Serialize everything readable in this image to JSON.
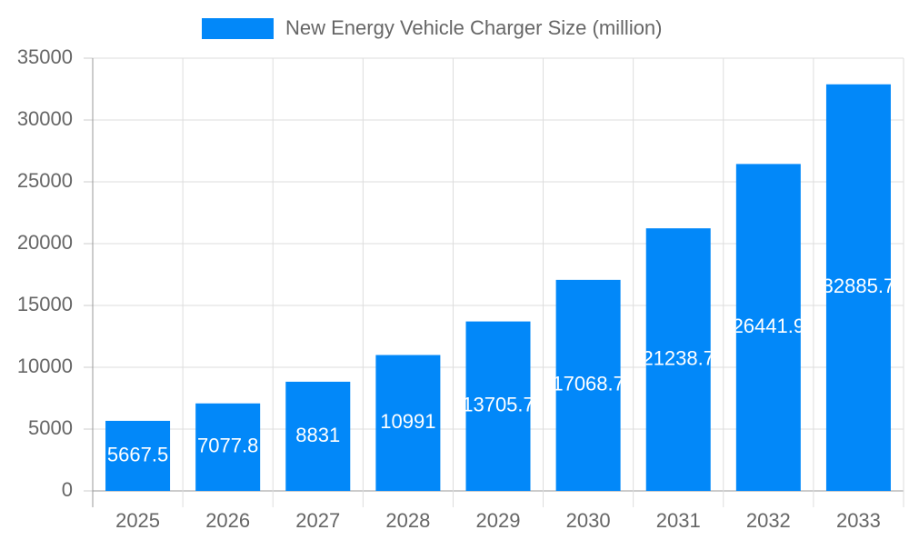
{
  "chart_data": {
    "type": "bar",
    "legend": "New Energy Vehicle Charger Size (million)",
    "categories": [
      "2025",
      "2026",
      "2027",
      "2028",
      "2029",
      "2030",
      "2031",
      "2032",
      "2033"
    ],
    "values": [
      5667.5,
      7077.8,
      8831,
      10991,
      13705.7,
      17068.7,
      21238.7,
      26441.9,
      32885.7
    ],
    "color": "#0288f9",
    "ylim": [
      0,
      35000
    ],
    "yticks": [
      0,
      5000,
      10000,
      15000,
      20000,
      25000,
      30000,
      35000
    ],
    "grid": true
  }
}
